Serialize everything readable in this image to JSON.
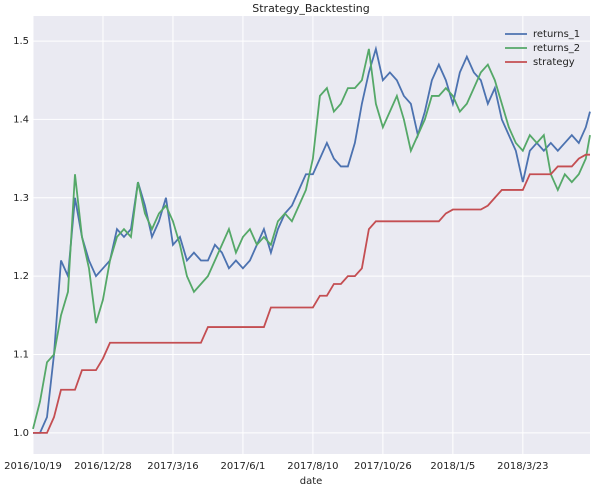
{
  "chart_data": {
    "type": "line",
    "title": "Strategy_Backtesting",
    "x_label": "date",
    "x": [
      0,
      5,
      10,
      15,
      20,
      25,
      30,
      35,
      40,
      45,
      50,
      55,
      60,
      65,
      70,
      75,
      80,
      85,
      90,
      95,
      100,
      105,
      110,
      115,
      120,
      125,
      130,
      135,
      140,
      145,
      150,
      155,
      160,
      165,
      170,
      175,
      180,
      185,
      190,
      195,
      200,
      205,
      210,
      215,
      220,
      225,
      230,
      235,
      240,
      245,
      250,
      255,
      260,
      265,
      270,
      275,
      280,
      285,
      290,
      295,
      300,
      305,
      310,
      315,
      320,
      325,
      330,
      335,
      340,
      345,
      350,
      355,
      360,
      365,
      370,
      375,
      380,
      385,
      390,
      395,
      398
    ],
    "xlim": [
      0,
      398
    ],
    "xticks": [
      {
        "value": 0,
        "label": "2016/10/19"
      },
      {
        "value": 50,
        "label": "2016/12/28"
      },
      {
        "value": 100,
        "label": "2017/3/16"
      },
      {
        "value": 150,
        "label": "2017/6/1"
      },
      {
        "value": 200,
        "label": "2017/8/10"
      },
      {
        "value": 250,
        "label": "2017/10/26"
      },
      {
        "value": 300,
        "label": "2018/1/5"
      },
      {
        "value": 350,
        "label": "2018/3/23"
      }
    ],
    "ylim": [
      0.973,
      1.532
    ],
    "yticks": [
      {
        "value": 1.0,
        "label": "1.0"
      },
      1.1,
      1.2,
      1.3,
      1.4,
      1.5
    ],
    "grid": true,
    "legend": "upper right",
    "background": "#eaeaf2",
    "series": [
      {
        "name": "returns_1",
        "color": "#4c72b0",
        "values": [
          1.0,
          1.0,
          1.02,
          1.1,
          1.22,
          1.2,
          1.3,
          1.25,
          1.22,
          1.2,
          1.21,
          1.22,
          1.26,
          1.25,
          1.26,
          1.32,
          1.29,
          1.25,
          1.27,
          1.3,
          1.24,
          1.25,
          1.22,
          1.23,
          1.22,
          1.22,
          1.24,
          1.23,
          1.21,
          1.22,
          1.21,
          1.22,
          1.24,
          1.26,
          1.23,
          1.26,
          1.28,
          1.29,
          1.31,
          1.33,
          1.33,
          1.35,
          1.37,
          1.35,
          1.34,
          1.34,
          1.37,
          1.42,
          1.46,
          1.49,
          1.45,
          1.46,
          1.45,
          1.43,
          1.42,
          1.38,
          1.41,
          1.45,
          1.47,
          1.45,
          1.42,
          1.46,
          1.48,
          1.46,
          1.45,
          1.42,
          1.44,
          1.4,
          1.38,
          1.36,
          1.32,
          1.36,
          1.37,
          1.36,
          1.37,
          1.36,
          1.37,
          1.38,
          1.37,
          1.39,
          1.41
        ]
      },
      {
        "name": "returns_2",
        "color": "#55a868",
        "values": [
          1.005,
          1.04,
          1.09,
          1.1,
          1.15,
          1.18,
          1.33,
          1.25,
          1.21,
          1.14,
          1.17,
          1.22,
          1.25,
          1.26,
          1.25,
          1.32,
          1.28,
          1.26,
          1.28,
          1.29,
          1.27,
          1.24,
          1.2,
          1.18,
          1.19,
          1.2,
          1.22,
          1.24,
          1.26,
          1.23,
          1.25,
          1.26,
          1.24,
          1.25,
          1.24,
          1.27,
          1.28,
          1.27,
          1.29,
          1.31,
          1.35,
          1.43,
          1.44,
          1.41,
          1.42,
          1.44,
          1.44,
          1.45,
          1.49,
          1.42,
          1.39,
          1.41,
          1.43,
          1.4,
          1.36,
          1.38,
          1.4,
          1.43,
          1.43,
          1.44,
          1.43,
          1.41,
          1.42,
          1.44,
          1.46,
          1.47,
          1.45,
          1.42,
          1.39,
          1.37,
          1.36,
          1.38,
          1.37,
          1.38,
          1.33,
          1.31,
          1.33,
          1.32,
          1.33,
          1.35,
          1.38
        ]
      },
      {
        "name": "strategy",
        "color": "#c44e52",
        "values": [
          1.0,
          1.0,
          1.0,
          1.02,
          1.055,
          1.055,
          1.055,
          1.08,
          1.08,
          1.08,
          1.095,
          1.115,
          1.115,
          1.115,
          1.115,
          1.115,
          1.115,
          1.115,
          1.115,
          1.115,
          1.115,
          1.115,
          1.115,
          1.115,
          1.115,
          1.135,
          1.135,
          1.135,
          1.135,
          1.135,
          1.135,
          1.135,
          1.135,
          1.135,
          1.16,
          1.16,
          1.16,
          1.16,
          1.16,
          1.16,
          1.16,
          1.175,
          1.175,
          1.19,
          1.19,
          1.2,
          1.2,
          1.21,
          1.26,
          1.27,
          1.27,
          1.27,
          1.27,
          1.27,
          1.27,
          1.27,
          1.27,
          1.27,
          1.27,
          1.28,
          1.285,
          1.285,
          1.285,
          1.285,
          1.285,
          1.29,
          1.3,
          1.31,
          1.31,
          1.31,
          1.31,
          1.33,
          1.33,
          1.33,
          1.33,
          1.34,
          1.34,
          1.34,
          1.35,
          1.355,
          1.355
        ]
      }
    ]
  }
}
